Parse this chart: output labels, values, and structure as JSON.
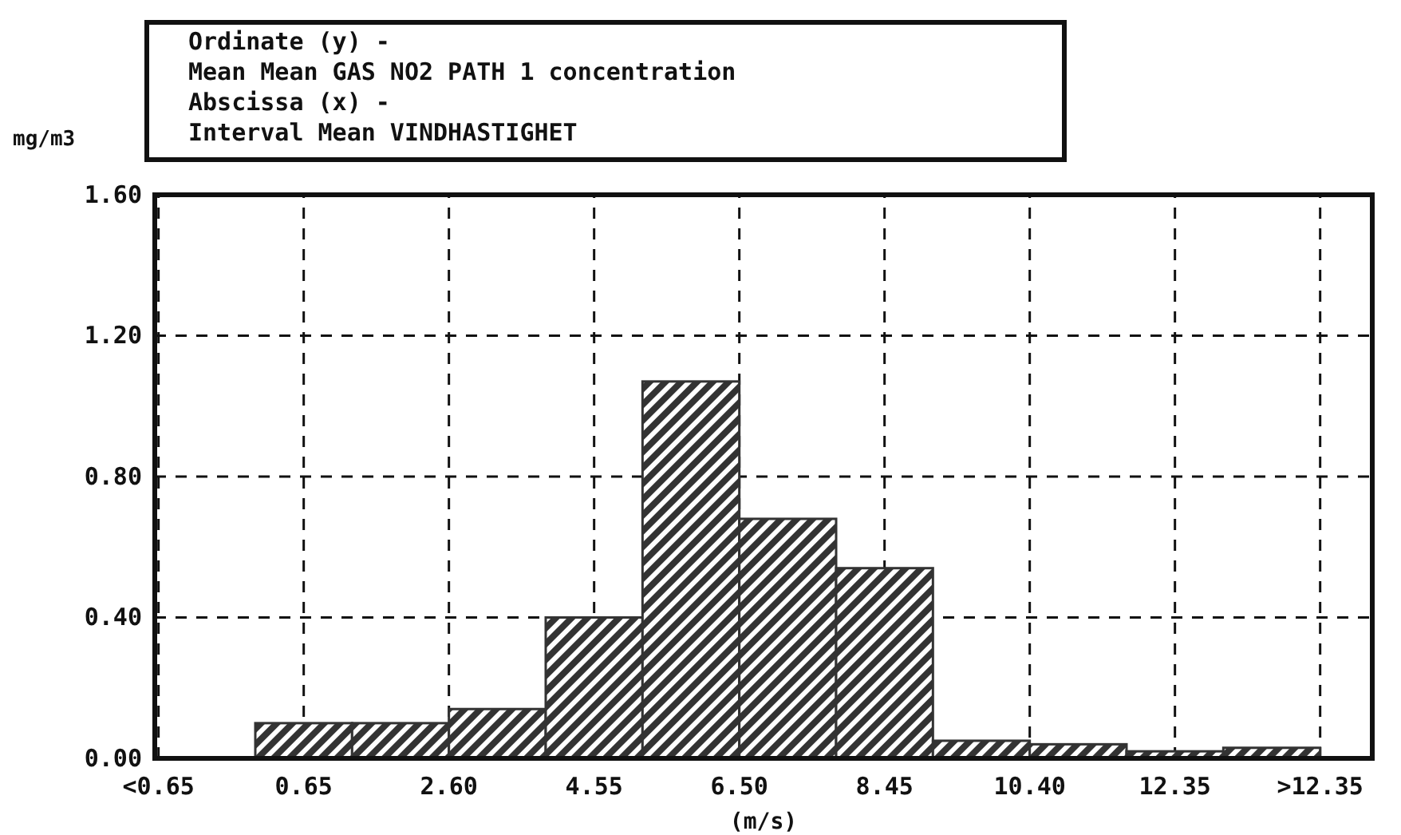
{
  "chart_data": {
    "type": "histogram",
    "annotations": [
      "Ordinate (y) -",
      "Mean Mean GAS NO2 PATH 1 concentration",
      "Abscissa (x) -",
      "Interval Mean VINDHASTIGHET"
    ],
    "ylabel": "mg/m3",
    "xlabel": "(m/s)",
    "bins": [
      0,
      1.3,
      2.6,
      3.9,
      5.2,
      6.5,
      7.8,
      9.1,
      10.4,
      11.7,
      13.0,
      14.3
    ],
    "values": [
      0.1,
      0.1,
      0.14,
      0.4,
      1.07,
      0.68,
      0.54,
      0.05,
      0.04,
      0.02,
      0.03
    ],
    "color": "#333333",
    "xlim": [
      -1.35,
      15.0
    ],
    "xticks": [
      {
        "value": -1.3,
        "label": "<0.65"
      },
      {
        "value": 0.65,
        "label": "0.65"
      },
      {
        "value": 2.6,
        "label": "2.60"
      },
      {
        "value": 4.55,
        "label": "4.55"
      },
      {
        "value": 6.5,
        "label": "6.50"
      },
      {
        "value": 8.45,
        "label": "8.45"
      },
      {
        "value": 10.4,
        "label": "10.40"
      },
      {
        "value": 12.35,
        "label": "12.35"
      },
      {
        "value": 14.3,
        "label": ">12.35"
      }
    ],
    "ylim": [
      0,
      1.6
    ],
    "yticks": [
      {
        "value": 0,
        "label": "0.00"
      },
      {
        "value": 0.4,
        "label": "0.40"
      },
      {
        "value": 0.8,
        "label": "0.80"
      },
      {
        "value": 1.2,
        "label": "1.20"
      },
      {
        "value": 1.6,
        "label": "1.60"
      }
    ],
    "grid": true
  }
}
